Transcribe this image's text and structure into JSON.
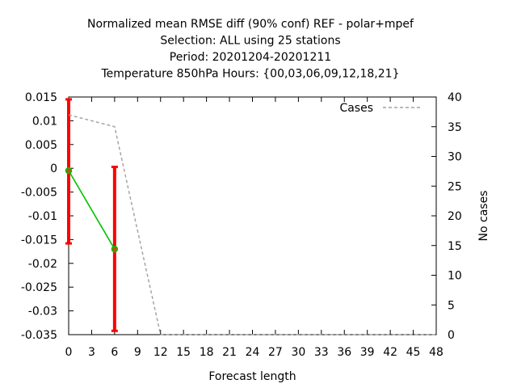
{
  "chart_data": {
    "type": "line",
    "title_lines": [
      "Normalized mean RMSE diff (90% conf) REF - polar+mpef",
      "Selection: ALL using    25 stations",
      "Period: 20201204-20201211",
      "Temperature 850hPa   Hours: {00,03,06,09,12,18,21}"
    ],
    "xlabel": "Forecast length",
    "ylabel": "",
    "y2label": "No cases",
    "xlim": [
      0,
      48
    ],
    "ylim": [
      -0.035,
      0.015
    ],
    "y2lim": [
      0,
      40
    ],
    "x_ticks": [
      "0",
      "3",
      "6",
      "9",
      "12",
      "15",
      "18",
      "21",
      "24",
      "27",
      "30",
      "33",
      "36",
      "39",
      "42",
      "45",
      "48"
    ],
    "y_ticks": [
      "0.015",
      "0.01",
      "0.005",
      "0",
      "-0.005",
      "-0.01",
      "-0.015",
      "-0.02",
      "-0.025",
      "-0.03",
      "-0.035"
    ],
    "y2_ticks": [
      "40",
      "35",
      "30",
      "25",
      "20",
      "15",
      "10",
      "5",
      "0"
    ],
    "legend": {
      "label": "Cases",
      "placement": "top-right"
    },
    "series": [
      {
        "name": "",
        "color": "#00c000",
        "x": [
          0,
          6
        ],
        "y": [
          -0.0005,
          -0.017
        ],
        "err_low": [
          -0.0158,
          -0.0342
        ],
        "err_high": [
          0.0145,
          0.0003
        ],
        "err_color": "#ff0000"
      },
      {
        "name": "Cases",
        "color": "#a0a0a0",
        "dashed": true,
        "axis": "y2",
        "x": [
          0,
          6,
          12,
          48
        ],
        "y": [
          37,
          35,
          0,
          0
        ]
      }
    ]
  }
}
